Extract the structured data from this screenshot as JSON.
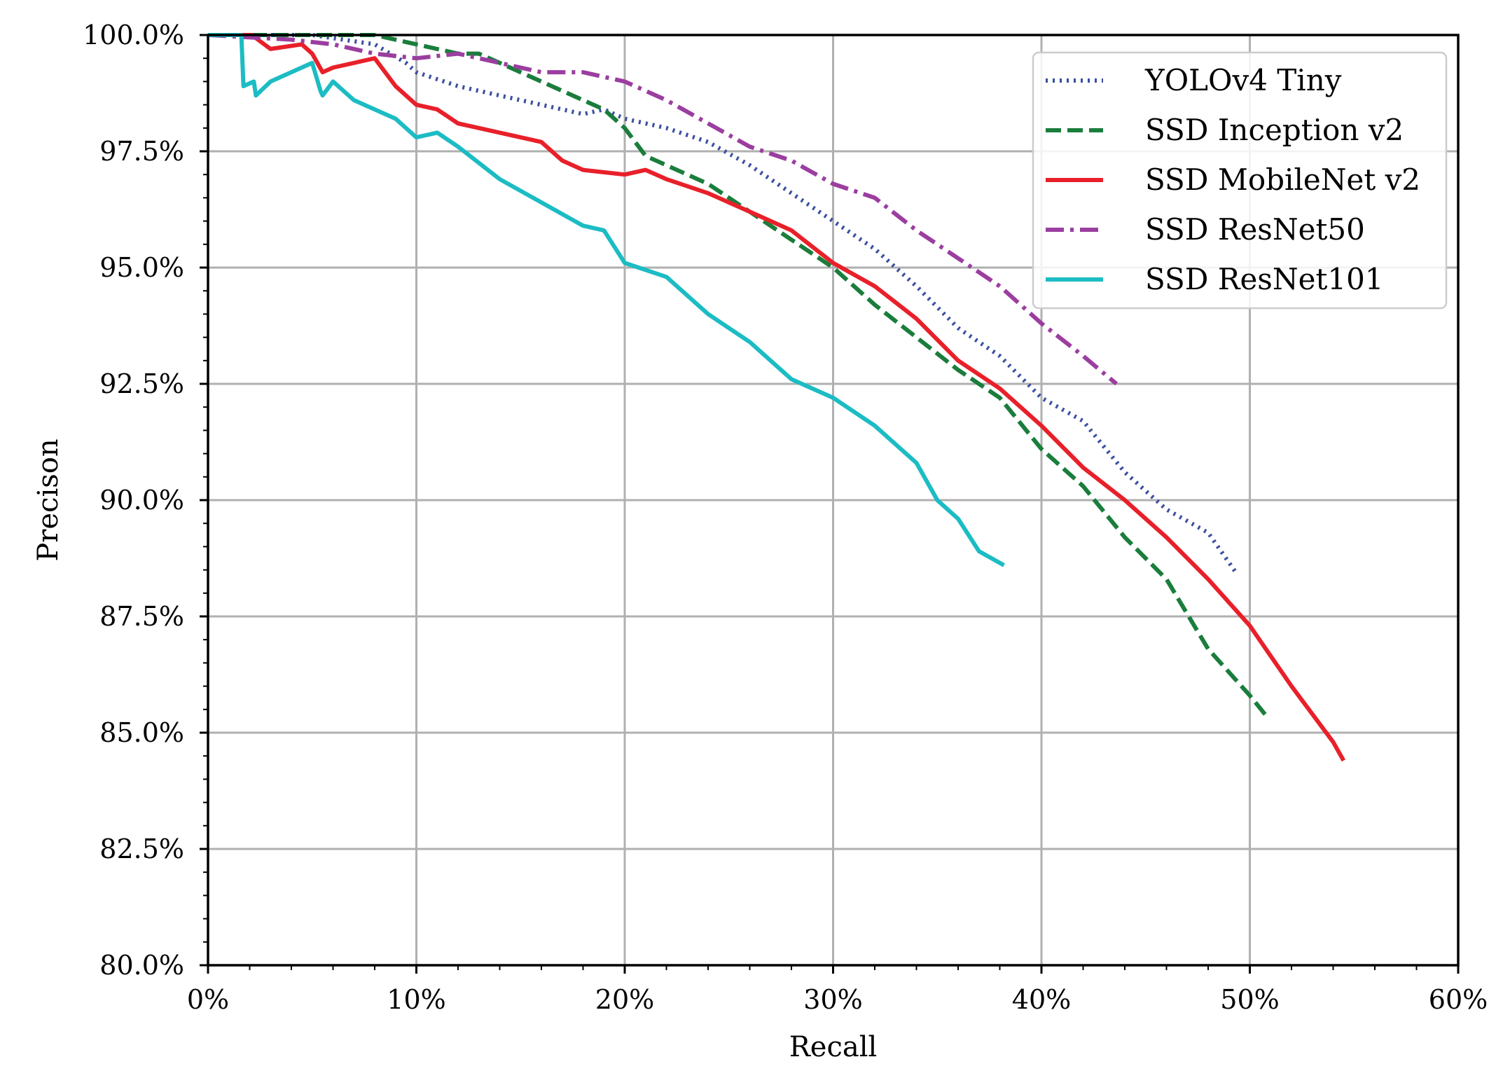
{
  "chart_data": {
    "type": "line",
    "title": "",
    "xlabel": "Recall",
    "ylabel": "Precison",
    "xlim": [
      0,
      60
    ],
    "ylim": [
      80,
      100
    ],
    "x_ticks": [
      0,
      10,
      20,
      30,
      40,
      50,
      60
    ],
    "x_tick_labels": [
      "0%",
      "10%",
      "20%",
      "30%",
      "40%",
      "50%",
      "60%"
    ],
    "y_ticks": [
      80,
      82.5,
      85,
      87.5,
      90,
      92.5,
      95,
      97.5,
      100
    ],
    "y_tick_labels": [
      "80.0%",
      "82.5%",
      "85.0%",
      "87.5%",
      "90.0%",
      "92.5%",
      "95.0%",
      "97.5%",
      "100.0%"
    ],
    "grid": true,
    "legend_position": "top-right",
    "series": [
      {
        "name": "YOLOv4 Tiny",
        "color": "#3a4fa0",
        "style": "dotted",
        "x": [
          0,
          5,
          8,
          9.5,
          10,
          12,
          15,
          17,
          18,
          19,
          20,
          22,
          24,
          26,
          28,
          30,
          32,
          34,
          36,
          38,
          40,
          42,
          44,
          46,
          48,
          49.4
        ],
        "y": [
          100,
          100,
          99.8,
          99.4,
          99.2,
          98.9,
          98.6,
          98.4,
          98.3,
          98.4,
          98.2,
          98.0,
          97.7,
          97.2,
          96.6,
          96.0,
          95.4,
          94.6,
          93.7,
          93.1,
          92.2,
          91.7,
          90.6,
          89.8,
          89.3,
          88.4
        ]
      },
      {
        "name": "SSD Inception v2",
        "color": "#1a7d3c",
        "style": "dashed",
        "x": [
          0,
          8,
          10,
          12,
          13,
          15,
          17,
          19,
          20,
          21,
          22,
          23,
          24,
          26,
          28,
          30,
          32,
          34,
          36,
          38,
          40,
          42,
          44,
          46,
          48,
          50,
          50.9
        ],
        "y": [
          100,
          100,
          99.8,
          99.6,
          99.6,
          99.2,
          98.8,
          98.4,
          98.0,
          97.4,
          97.2,
          97.0,
          96.8,
          96.2,
          95.6,
          95.0,
          94.2,
          93.5,
          92.8,
          92.2,
          91.1,
          90.3,
          89.2,
          88.3,
          86.8,
          85.8,
          85.3
        ]
      },
      {
        "name": "SSD MobileNet v2",
        "color": "#e8202a",
        "style": "solid",
        "x": [
          0,
          2.1,
          3,
          4.5,
          5,
          5.5,
          6,
          8,
          9,
          10,
          11,
          12,
          14,
          16,
          17,
          18,
          20,
          21,
          22,
          24,
          26,
          28,
          30,
          32,
          34,
          36,
          38,
          40,
          42,
          44,
          46,
          48,
          50,
          52,
          54,
          54.5
        ],
        "y": [
          100,
          100,
          99.7,
          99.8,
          99.6,
          99.2,
          99.3,
          99.5,
          98.9,
          98.5,
          98.4,
          98.1,
          97.9,
          97.7,
          97.3,
          97.1,
          97.0,
          97.1,
          96.9,
          96.6,
          96.2,
          95.8,
          95.1,
          94.6,
          93.9,
          93.0,
          92.4,
          91.6,
          90.7,
          90.0,
          89.2,
          88.3,
          87.3,
          86.0,
          84.8,
          84.4
        ]
      },
      {
        "name": "SSD ResNet50",
        "color": "#9b3ea0",
        "style": "dashdot",
        "x": [
          0,
          4,
          6,
          8,
          10,
          12,
          13,
          16,
          18,
          20,
          22,
          24,
          26,
          28,
          30,
          32,
          34,
          36,
          38,
          40,
          42,
          43.6
        ],
        "y": [
          100,
          99.9,
          99.8,
          99.6,
          99.5,
          99.6,
          99.5,
          99.2,
          99.2,
          99.0,
          98.6,
          98.1,
          97.6,
          97.3,
          96.8,
          96.5,
          95.8,
          95.2,
          94.6,
          93.8,
          93.1,
          92.5
        ]
      },
      {
        "name": "SSD ResNet101",
        "color": "#1cbcc4",
        "style": "solid",
        "x": [
          0,
          1.6,
          1.7,
          2.2,
          2.3,
          3,
          5,
          5.4,
          5.5,
          6,
          7,
          8,
          9,
          10,
          11,
          12,
          14,
          16,
          18,
          19,
          20,
          22,
          24,
          26,
          28,
          30,
          32,
          34,
          35,
          36,
          37,
          38.2
        ],
        "y": [
          100,
          100,
          98.9,
          99.0,
          98.7,
          99.0,
          99.4,
          98.8,
          98.7,
          99.0,
          98.6,
          98.4,
          98.2,
          97.8,
          97.9,
          97.6,
          96.9,
          96.4,
          95.9,
          95.8,
          95.1,
          94.8,
          94.0,
          93.4,
          92.6,
          92.2,
          91.6,
          90.8,
          90.0,
          89.6,
          88.9,
          88.6
        ]
      }
    ]
  }
}
